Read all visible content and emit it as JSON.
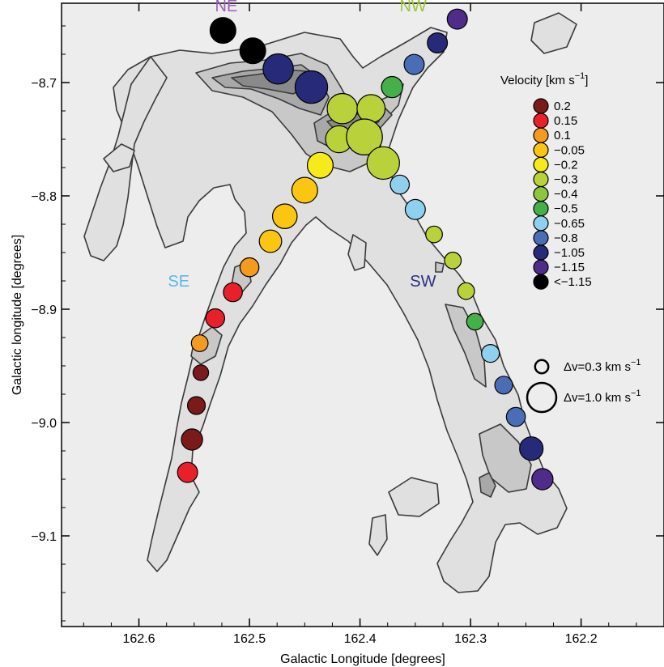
{
  "chart_data": {
    "type": "scatter",
    "xlabel": "Galactic Longitude [degrees]",
    "ylabel": "Galactic longitude [degrees]",
    "xlim": [
      162.67,
      162.125
    ],
    "ylim": [
      -9.18,
      -8.63
    ],
    "x_ticks": [
      {
        "value": 162.6,
        "label": "162.6"
      },
      {
        "value": 162.5,
        "label": "162.5"
      },
      {
        "value": 162.4,
        "label": "162.4"
      },
      {
        "value": 162.3,
        "label": "162.3"
      },
      {
        "value": 162.2,
        "label": "162.2"
      }
    ],
    "y_ticks": [
      {
        "value": -8.7,
        "label": "−8.7"
      },
      {
        "value": -8.8,
        "label": "−8.8"
      },
      {
        "value": -8.9,
        "label": "−8.9"
      },
      {
        "value": -9.0,
        "label": "−9.0"
      },
      {
        "value": -9.1,
        "label": "−9.1"
      }
    ],
    "region_labels": [
      {
        "text": "NE",
        "lon": 162.521,
        "lat": -8.637,
        "color": "#9b5fb5"
      },
      {
        "text": "NW",
        "lon": 162.352,
        "lat": -8.637,
        "color": "#9dc43c"
      },
      {
        "text": "SE",
        "lon": 162.564,
        "lat": -8.88,
        "color": "#5cb8e4"
      },
      {
        "text": "SW",
        "lon": 162.343,
        "lat": -8.88,
        "color": "#2b2f7e"
      }
    ],
    "legend": {
      "title_prefix": "Velocity [km s",
      "title_exp": "−1",
      "title_suffix": "]",
      "entries": [
        {
          "label": "0.2",
          "color": "#7a1a1a"
        },
        {
          "label": "0.15",
          "color": "#e8202a"
        },
        {
          "label": "0.1",
          "color": "#f39b1f"
        },
        {
          "label": "−0.05",
          "color": "#fbc612"
        },
        {
          "label": "−0.2",
          "color": "#f7ea1a"
        },
        {
          "label": "−0.3",
          "color": "#b9d13a"
        },
        {
          "label": "−0.4",
          "color": "#8cc63e"
        },
        {
          "label": "−0.5",
          "color": "#45b04a"
        },
        {
          "label": "−0.65",
          "color": "#8fd0ee"
        },
        {
          "label": "−0.8",
          "color": "#4a6db5"
        },
        {
          "label": "−1.05",
          "color": "#262a78"
        },
        {
          "label": "−1.15",
          "color": "#4f2b8a"
        },
        {
          "label": "<−1.15",
          "color": "#000000"
        }
      ],
      "size_entries": [
        {
          "prefix": "Δv=0.3 km s",
          "exp": "−1",
          "dv": 0.3
        },
        {
          "prefix": "Δv=1.0 km s",
          "exp": "−1",
          "dv": 1.0
        }
      ]
    },
    "points": [
      {
        "lon": 162.524,
        "lat": -8.654,
        "dv": 0.85,
        "color": "#000000"
      },
      {
        "lon": 162.497,
        "lat": -8.672,
        "dv": 0.85,
        "color": "#000000"
      },
      {
        "lon": 162.474,
        "lat": -8.688,
        "dv": 1.05,
        "color": "#262a78"
      },
      {
        "lon": 162.444,
        "lat": -8.704,
        "dv": 1.15,
        "color": "#262a78"
      },
      {
        "lon": 162.312,
        "lat": -8.644,
        "dv": 0.6,
        "color": "#4f2b8a"
      },
      {
        "lon": 162.33,
        "lat": -8.665,
        "dv": 0.6,
        "color": "#262a78"
      },
      {
        "lon": 162.351,
        "lat": -8.684,
        "dv": 0.6,
        "color": "#4a6db5"
      },
      {
        "lon": 162.371,
        "lat": -8.704,
        "dv": 0.65,
        "color": "#45b04a"
      },
      {
        "lon": 162.416,
        "lat": -8.723,
        "dv": 1.05,
        "color": "#b9d13a"
      },
      {
        "lon": 162.39,
        "lat": -8.723,
        "dv": 0.95,
        "color": "#b9d13a"
      },
      {
        "lon": 162.419,
        "lat": -8.75,
        "dv": 0.9,
        "color": "#b9d13a"
      },
      {
        "lon": 162.396,
        "lat": -8.748,
        "dv": 1.3,
        "color": "#b9d13a"
      },
      {
        "lon": 162.379,
        "lat": -8.771,
        "dv": 1.15,
        "color": "#b9d13a"
      },
      {
        "lon": 162.436,
        "lat": -8.773,
        "dv": 0.85,
        "color": "#f7ea1a"
      },
      {
        "lon": 162.45,
        "lat": -8.795,
        "dv": 0.85,
        "color": "#fbc612"
      },
      {
        "lon": 162.468,
        "lat": -8.818,
        "dv": 0.8,
        "color": "#fbc612"
      },
      {
        "lon": 162.481,
        "lat": -8.84,
        "dv": 0.7,
        "color": "#fbc612"
      },
      {
        "lon": 162.5,
        "lat": -8.863,
        "dv": 0.55,
        "color": "#f39b1f"
      },
      {
        "lon": 162.515,
        "lat": -8.885,
        "dv": 0.55,
        "color": "#e8202a"
      },
      {
        "lon": 162.531,
        "lat": -8.908,
        "dv": 0.55,
        "color": "#e8202a"
      },
      {
        "lon": 162.545,
        "lat": -8.93,
        "dv": 0.45,
        "color": "#f39b1f"
      },
      {
        "lon": 162.544,
        "lat": -8.956,
        "dv": 0.4,
        "color": "#7a1a1a"
      },
      {
        "lon": 162.548,
        "lat": -8.985,
        "dv": 0.5,
        "color": "#7a1a1a"
      },
      {
        "lon": 162.552,
        "lat": -9.015,
        "dv": 0.65,
        "color": "#7a1a1a"
      },
      {
        "lon": 162.556,
        "lat": -9.044,
        "dv": 0.6,
        "color": "#e8202a"
      },
      {
        "lon": 162.364,
        "lat": -8.79,
        "dv": 0.55,
        "color": "#8fd0ee"
      },
      {
        "lon": 162.35,
        "lat": -8.812,
        "dv": 0.6,
        "color": "#8fd0ee"
      },
      {
        "lon": 162.333,
        "lat": -8.834,
        "dv": 0.45,
        "color": "#b9d13a"
      },
      {
        "lon": 162.316,
        "lat": -8.857,
        "dv": 0.45,
        "color": "#b9d13a"
      },
      {
        "lon": 162.304,
        "lat": -8.884,
        "dv": 0.45,
        "color": "#b9d13a"
      },
      {
        "lon": 162.296,
        "lat": -8.911,
        "dv": 0.45,
        "color": "#45b04a"
      },
      {
        "lon": 162.282,
        "lat": -8.939,
        "dv": 0.5,
        "color": "#8fd0ee"
      },
      {
        "lon": 162.27,
        "lat": -8.967,
        "dv": 0.5,
        "color": "#4a6db5"
      },
      {
        "lon": 162.259,
        "lat": -8.995,
        "dv": 0.55,
        "color": "#4a6db5"
      },
      {
        "lon": 162.245,
        "lat": -9.023,
        "dv": 0.75,
        "color": "#262a78"
      },
      {
        "lon": 162.235,
        "lat": -9.05,
        "dv": 0.65,
        "color": "#4f2b8a"
      }
    ]
  }
}
